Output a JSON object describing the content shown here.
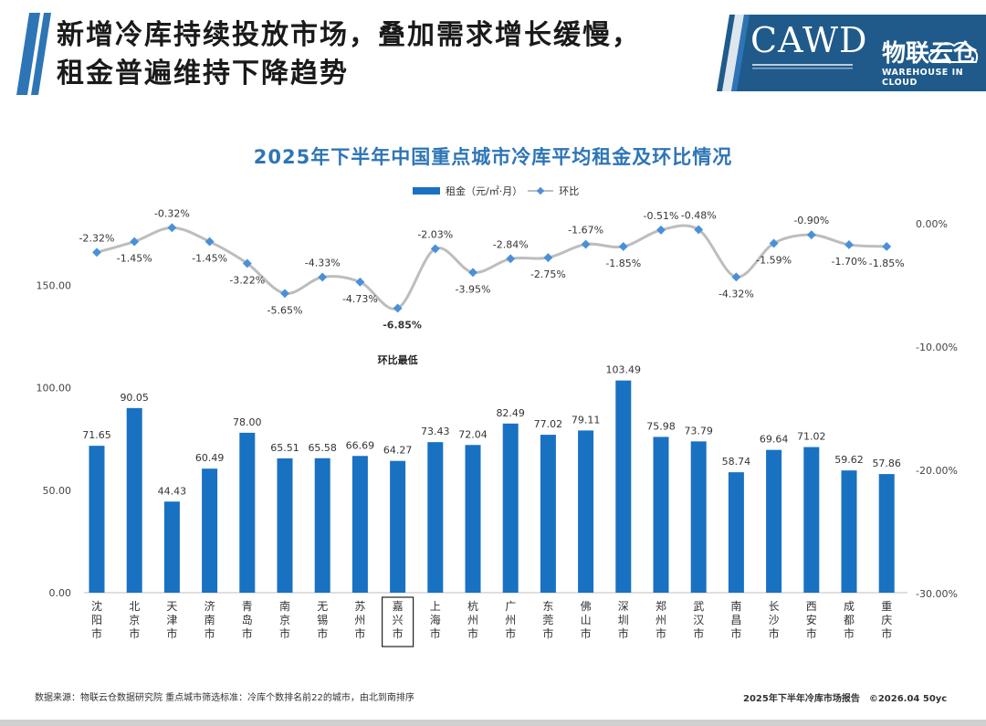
{
  "slide": {
    "title_line1": "新增冷库持续投放市场，叠加需求增长缓慢，",
    "title_line2": "租金普遍维持下降趋势"
  },
  "logo": {
    "cawd": "CAWD",
    "cn": "物联云仓",
    "en": "WAREHOUSE IN CLOUD"
  },
  "colors": {
    "bar": "#1971c2",
    "line": "#bdbdbd",
    "marker": "#4a90d9",
    "title": "#2e75b6"
  },
  "chart_data": {
    "type": "bar",
    "title": "2025年下半年中国重点城市冷库平均租金及环比情况",
    "legend": {
      "bar": "租金（元/㎡·月）",
      "line": "环比"
    },
    "legend_position": "top",
    "categories": [
      "沈阳市",
      "北京市",
      "天津市",
      "济南市",
      "青岛市",
      "南京市",
      "无锡市",
      "苏州市",
      "嘉兴市",
      "上海市",
      "杭州市",
      "广州市",
      "东莞市",
      "佛山市",
      "深圳市",
      "郑州市",
      "武汉市",
      "南昌市",
      "长沙市",
      "西安市",
      "成都市",
      "重庆市"
    ],
    "series": [
      {
        "name": "租金（元/㎡·月）",
        "type": "bar",
        "axis": "left",
        "values": [
          71.65,
          90.05,
          44.43,
          60.49,
          78.0,
          65.51,
          65.58,
          66.69,
          64.27,
          73.43,
          72.04,
          82.49,
          77.02,
          79.11,
          103.49,
          75.98,
          73.79,
          58.74,
          69.64,
          71.02,
          59.62,
          57.86
        ],
        "labels": [
          "71.65",
          "90.05",
          "44.43",
          "60.49",
          "78.00",
          "65.51",
          "65.58",
          "66.69",
          "64.27",
          "73.43",
          "72.04",
          "82.49",
          "77.02",
          "79.11",
          "103.49",
          "75.98",
          "73.79",
          "58.74",
          "69.64",
          "71.02",
          "59.62",
          "57.86"
        ]
      },
      {
        "name": "环比",
        "type": "line",
        "axis": "right",
        "values": [
          -2.32,
          -1.45,
          -0.32,
          -1.45,
          -3.22,
          -5.65,
          -4.33,
          -4.73,
          -6.85,
          -2.03,
          -3.95,
          -2.84,
          -2.75,
          -1.67,
          -1.85,
          -0.51,
          -0.48,
          -4.32,
          -1.59,
          -0.9,
          -1.7,
          -1.85
        ],
        "labels": [
          "-2.32%",
          "-1.45%",
          "-0.32%",
          "-1.45%",
          "-3.22%",
          "-5.65%",
          "-4.33%",
          "-4.73%",
          "-6.85%",
          "-2.03%",
          "-3.95%",
          "-2.84%",
          "-2.75%",
          "-1.67%",
          "-1.85%",
          "-0.51%",
          "-0.48%",
          "-4.32%",
          "-1.59%",
          "-0.90%",
          "-1.70%",
          "-1.85%"
        ]
      }
    ],
    "y_left": {
      "ticks": [
        0,
        50,
        100,
        150
      ],
      "tick_labels": [
        "0.00",
        "50.00",
        "100.00",
        "150.00"
      ],
      "ylim": [
        0,
        150
      ]
    },
    "y_right": {
      "ticks": [
        0,
        -10,
        -20,
        -30
      ],
      "tick_labels": [
        "0.00%",
        "-10.00%",
        "-20.00%",
        "-30.00%"
      ],
      "ylim": [
        -30,
        0
      ]
    },
    "grid": false,
    "highlight": {
      "category": "嘉兴市",
      "annotation": "环比最低"
    }
  },
  "footer": {
    "source": "数据来源：物联云仓数据研究院 重点城市筛选标准：冷库个数排名前22的城市，由北到南排序",
    "report": "2025年下半年冷库市场报告　©2026.04 50yc"
  }
}
